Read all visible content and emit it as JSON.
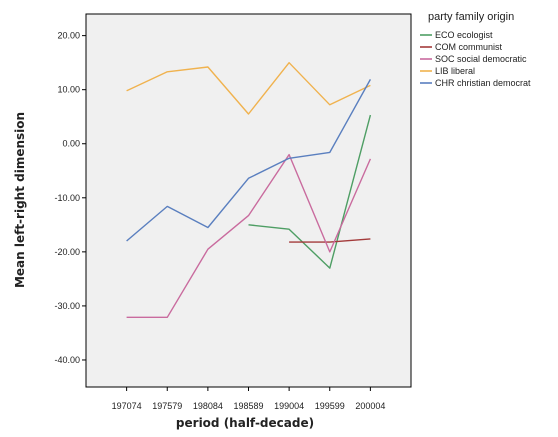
{
  "chart_data": {
    "type": "line",
    "xlabel": "period (half-decade)",
    "ylabel": "Mean left-right dimension",
    "categories": [
      "197074",
      "197579",
      "198084",
      "198589",
      "199004",
      "199599",
      "200004"
    ],
    "ylim": [
      -45,
      24
    ],
    "yticks": [
      "20.00",
      "10.00",
      "0.00",
      "-10.00",
      "-20.00",
      "-30.00",
      "-40.00"
    ],
    "ytick_values": [
      20,
      10,
      0,
      -10,
      -20,
      -30,
      -40
    ],
    "grid": false,
    "legend": {
      "title": "party family origin",
      "placement": "right"
    },
    "series": [
      {
        "name": "ECO ecologist",
        "color": "#4e9e64",
        "values": [
          null,
          null,
          null,
          -15.0,
          -15.8,
          -23.0,
          5.3
        ]
      },
      {
        "name": "COM communist",
        "color": "#a33a3a",
        "values": [
          null,
          null,
          null,
          null,
          -18.2,
          -18.2,
          -17.6
        ]
      },
      {
        "name": "SOC social democratic",
        "color": "#c96b9e",
        "values": [
          -32.1,
          -32.1,
          -19.5,
          -13.3,
          -2.0,
          -20.0,
          -2.8
        ]
      },
      {
        "name": "LIB liberal",
        "color": "#f0b24e",
        "values": [
          9.8,
          13.3,
          14.2,
          5.5,
          15.0,
          7.2,
          10.8
        ]
      },
      {
        "name": "CHR christian democrat",
        "color": "#5a7fbf",
        "values": [
          -18.0,
          -11.6,
          -15.5,
          -6.4,
          -2.7,
          -1.6,
          11.9
        ]
      }
    ]
  }
}
